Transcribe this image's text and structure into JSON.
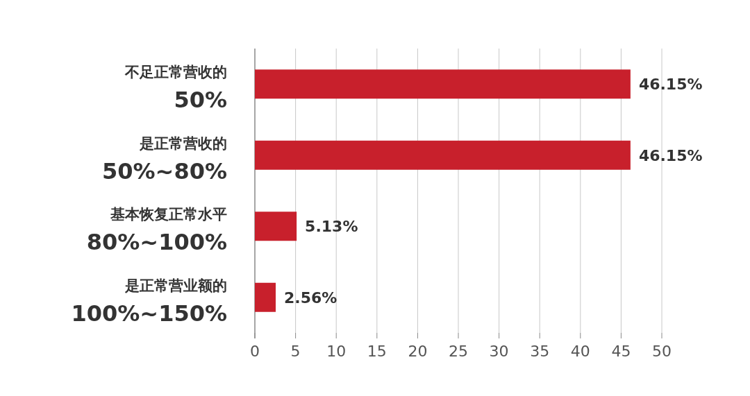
{
  "chart_data": {
    "type": "bar",
    "orientation": "horizontal",
    "categories": [
      "不足正常营收的\n50%",
      "是正常营收的\n50%~80%",
      "基本恢复正常水平\n80%~100%",
      "是正常营业额的\n100%~150%"
    ],
    "values": [
      46.15,
      46.15,
      5.13,
      2.56
    ],
    "value_labels": [
      "46.15%",
      "46.15%",
      "5.13%",
      "2.56%"
    ],
    "color": "#c8202c",
    "xlim": [
      0,
      50
    ],
    "xticks": [
      0,
      5,
      10,
      15,
      20,
      25,
      30,
      35,
      40,
      45,
      50
    ],
    "grid": "x"
  }
}
